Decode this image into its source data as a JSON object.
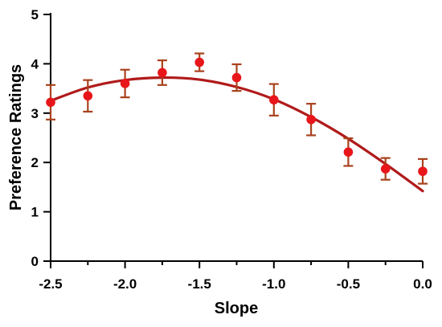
{
  "chart_data": {
    "type": "scatter",
    "xlabel": "Slope",
    "ylabel": "Preference Ratings",
    "xlim": [
      -2.5,
      0.0
    ],
    "ylim": [
      0,
      5
    ],
    "x_ticks": [
      -2.5,
      -2.0,
      -1.5,
      -1.0,
      -0.5,
      0.0
    ],
    "x_tick_labels": [
      "-2.5",
      "-2.0",
      "-1.5",
      "-1.0",
      "-0.5",
      "0.0"
    ],
    "x_minor_ticks": [
      -2.25,
      -1.75,
      -1.25,
      -0.75,
      -0.25
    ],
    "y_ticks": [
      0,
      1,
      2,
      3,
      4,
      5
    ],
    "y_tick_labels": [
      "0",
      "1",
      "2",
      "3",
      "4",
      "5"
    ],
    "grid": false,
    "colors": {
      "marker": "#e8161b",
      "errorbar": "#a8421c",
      "fit_line": "#b01a1a",
      "axis": "#000000"
    },
    "series": [
      {
        "kind": "points_with_error",
        "x": [
          -2.5,
          -2.25,
          -2.0,
          -1.75,
          -1.5,
          -1.25,
          -1.0,
          -0.75,
          -0.5,
          -0.25,
          0.0
        ],
        "y": [
          3.22,
          3.35,
          3.6,
          3.82,
          4.03,
          3.72,
          3.27,
          2.87,
          2.21,
          1.87,
          1.82
        ],
        "err": [
          0.35,
          0.32,
          0.28,
          0.25,
          0.18,
          0.27,
          0.32,
          0.32,
          0.28,
          0.22,
          0.25
        ]
      },
      {
        "kind": "fit_curve",
        "x": [
          -2.5,
          -2.25,
          -2.0,
          -1.75,
          -1.5,
          -1.25,
          -1.0,
          -0.75,
          -0.5,
          -0.25,
          0.0
        ],
        "y": [
          3.25,
          3.52,
          3.67,
          3.72,
          3.68,
          3.53,
          3.28,
          2.92,
          2.48,
          1.97,
          1.42
        ]
      }
    ]
  }
}
